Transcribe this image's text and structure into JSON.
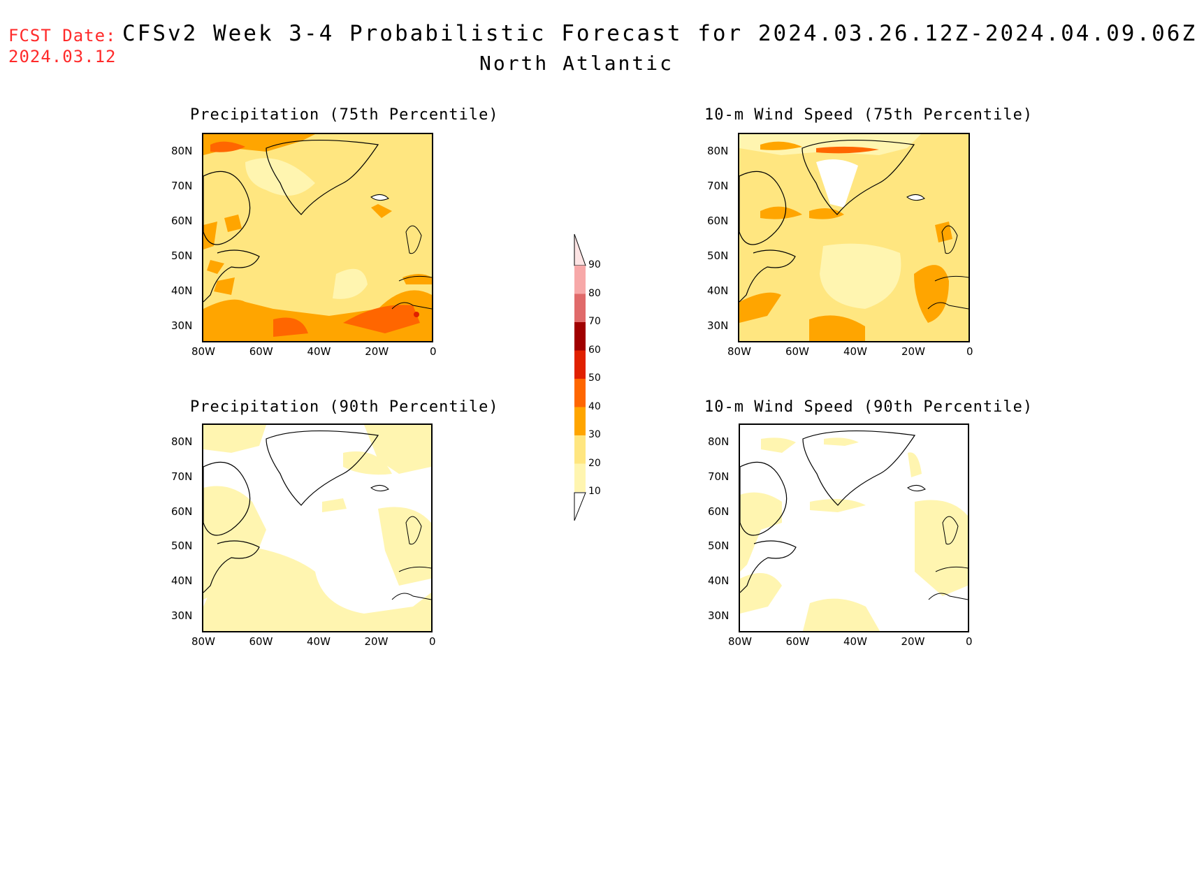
{
  "header": {
    "fcst_label": "FCST Date:",
    "fcst_date": "2024.03.12",
    "title": "CFSv2 Week 3-4 Probabilistic Forecast for 2024.03.26.12Z-2024.04.09.06Z",
    "subtitle": "North Atlantic"
  },
  "panels": [
    {
      "title": "Precipitation (75th Percentile)",
      "lat_ticks": [
        "80N",
        "70N",
        "60N",
        "50N",
        "40N",
        "30N"
      ],
      "lon_ticks": [
        "80W",
        "60W",
        "40W",
        "20W",
        "0"
      ]
    },
    {
      "title": "10-m Wind Speed (75th Percentile)",
      "lat_ticks": [
        "80N",
        "70N",
        "60N",
        "50N",
        "40N",
        "30N"
      ],
      "lon_ticks": [
        "80W",
        "60W",
        "40W",
        "20W",
        "0"
      ]
    },
    {
      "title": "Precipitation (90th Percentile)",
      "lat_ticks": [
        "80N",
        "70N",
        "60N",
        "50N",
        "40N",
        "30N"
      ],
      "lon_ticks": [
        "80W",
        "60W",
        "40W",
        "20W",
        "0"
      ]
    },
    {
      "title": "10-m Wind Speed (90th Percentile)",
      "lat_ticks": [
        "80N",
        "70N",
        "60N",
        "50N",
        "40N",
        "30N"
      ],
      "lon_ticks": [
        "80W",
        "60W",
        "40W",
        "20W",
        "0"
      ]
    }
  ],
  "colorbar": {
    "labels": [
      "90",
      "80",
      "70",
      "60",
      "50",
      "40",
      "30",
      "20",
      "10"
    ],
    "colors": [
      "#f7a8a8",
      "#e06a6a",
      "#a00000",
      "#e02000",
      "#ff6600",
      "#ffa500",
      "#ffe680",
      "#fff5b0"
    ]
  },
  "palette": {
    "level1": "#fff5b0",
    "level2": "#ffe680",
    "level3": "#ffa500",
    "level4": "#ff6600",
    "level5": "#e02000"
  }
}
